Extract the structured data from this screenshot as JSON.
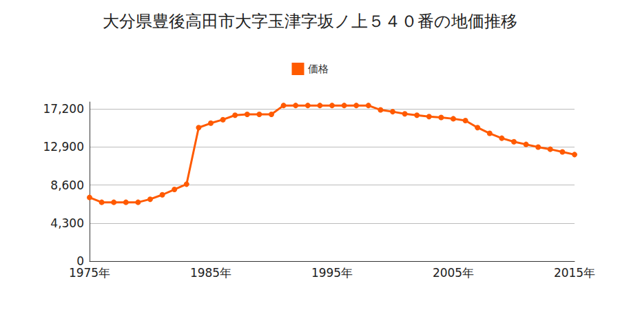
{
  "chart_data": {
    "type": "line",
    "title": "大分県豊後高田市大字玉津字坂ノ上５４０番の地価推移",
    "categories": [
      "1975年",
      null,
      null,
      null,
      null,
      null,
      null,
      null,
      null,
      null,
      "1985年",
      null,
      null,
      null,
      null,
      null,
      null,
      null,
      null,
      null,
      "1995年",
      null,
      null,
      null,
      null,
      null,
      null,
      null,
      null,
      null,
      "2005年",
      null,
      null,
      null,
      null,
      null,
      null,
      null,
      null,
      null,
      "2015年"
    ],
    "series": [
      {
        "name": "価格",
        "color": "#ff5a00",
        "marker": "circle",
        "values": [
          7200,
          6650,
          6650,
          6650,
          6650,
          7000,
          7500,
          8100,
          8700,
          15100,
          15600,
          16000,
          16500,
          16600,
          16600,
          16600,
          17600,
          17600,
          17600,
          17600,
          17600,
          17600,
          17600,
          17600,
          17100,
          16900,
          16650,
          16500,
          16350,
          16250,
          16100,
          15900,
          15100,
          14450,
          13900,
          13500,
          13200,
          12900,
          12650,
          12350,
          12050
        ]
      }
    ],
    "ylim": [
      0,
      18000
    ],
    "yticks": [
      0,
      {
        "value": 4300,
        "label": "4,300"
      },
      {
        "value": 8600,
        "label": "8,600"
      },
      {
        "value": 12900,
        "label": "12,900"
      },
      {
        "value": 17200,
        "label": "17,200"
      }
    ],
    "grid": true,
    "legend": "top"
  }
}
